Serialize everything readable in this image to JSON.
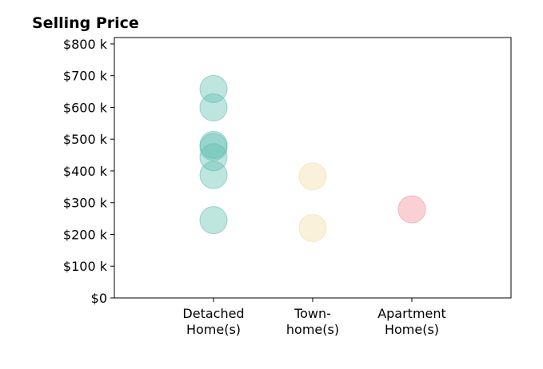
{
  "chart_data": {
    "type": "scatter",
    "title": "Selling Price",
    "xlabel": "",
    "ylabel": "",
    "ylim": [
      0,
      820000
    ],
    "yticks": [
      {
        "value": 0,
        "label": "$0"
      },
      {
        "value": 100000,
        "label": "$100 k"
      },
      {
        "value": 200000,
        "label": "$200 k"
      },
      {
        "value": 300000,
        "label": "$300 k"
      },
      {
        "value": 400000,
        "label": "$400 k"
      },
      {
        "value": 500000,
        "label": "$500 k"
      },
      {
        "value": 600000,
        "label": "$600 k"
      },
      {
        "value": 700000,
        "label": "$700 k"
      },
      {
        "value": 800000,
        "label": "$800 k"
      }
    ],
    "categories": [
      {
        "lines": [
          "Detached",
          "Home(s)"
        ],
        "color": "#5fbfb0"
      },
      {
        "lines": [
          "Town-",
          "home(s)"
        ],
        "color": "#f2dba6"
      },
      {
        "lines": [
          "Apartment",
          "Home(s)"
        ],
        "color": "#f08d97"
      }
    ],
    "points": [
      {
        "category": 0,
        "value": 658000
      },
      {
        "category": 0,
        "value": 600000
      },
      {
        "category": 0,
        "value": 482000
      },
      {
        "category": 0,
        "value": 475000
      },
      {
        "category": 0,
        "value": 443000
      },
      {
        "category": 0,
        "value": 387000
      },
      {
        "category": 0,
        "value": 245000
      },
      {
        "category": 1,
        "value": 383000
      },
      {
        "category": 1,
        "value": 220000
      },
      {
        "category": 2,
        "value": 279000
      }
    ],
    "grid": false,
    "legend": "none"
  }
}
